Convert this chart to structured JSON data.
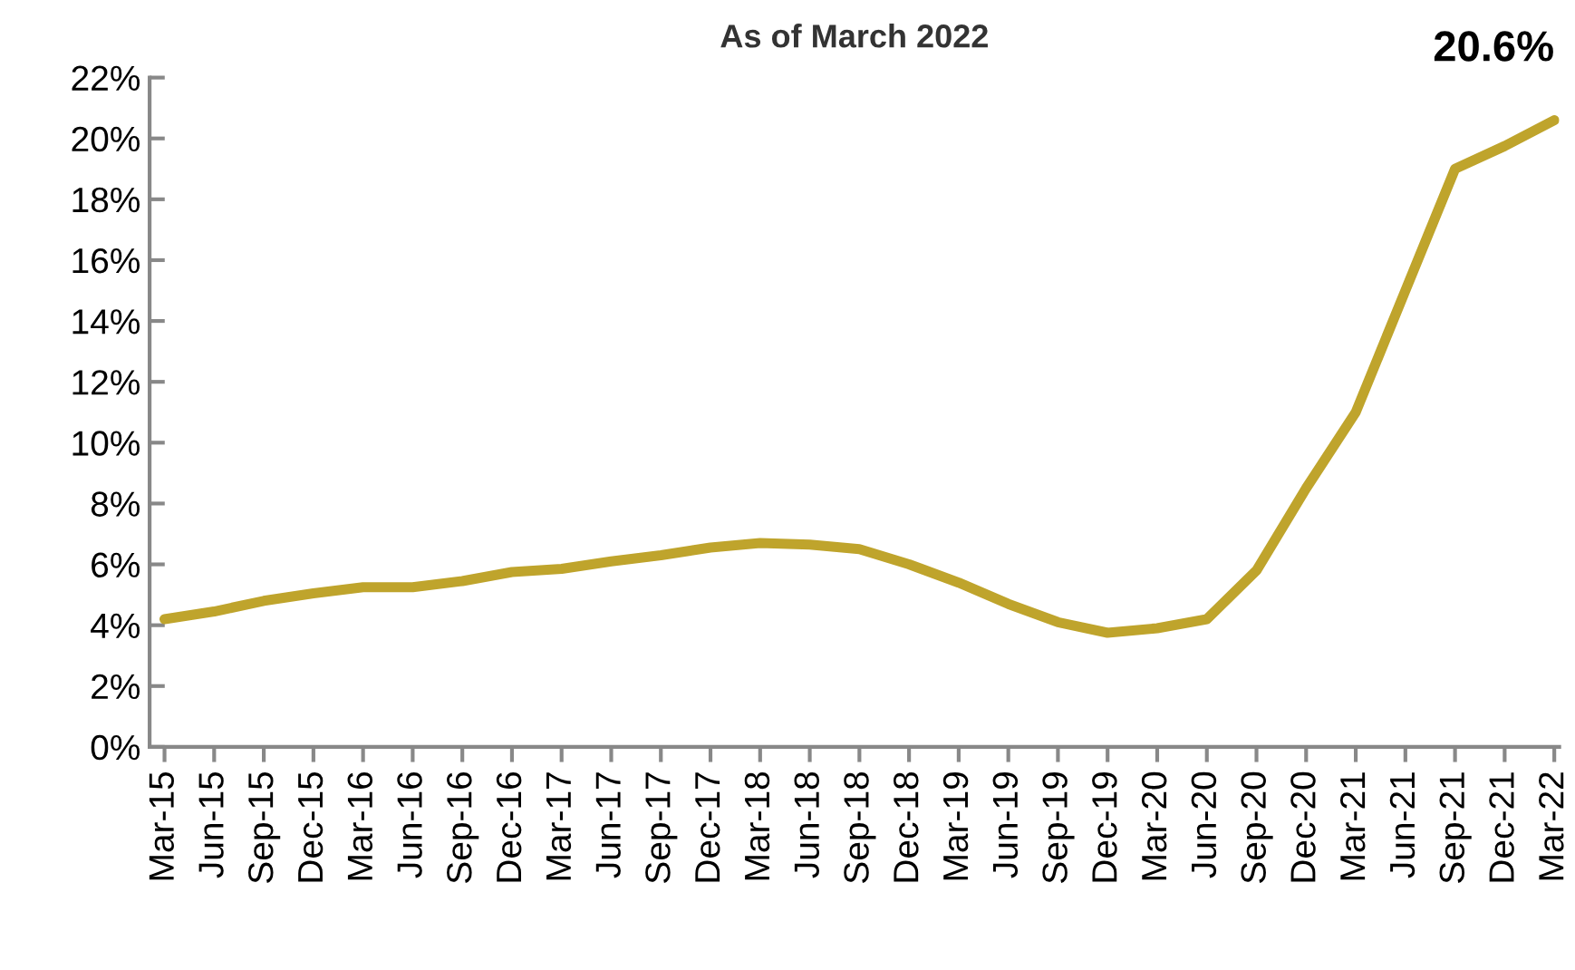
{
  "chart_data": {
    "type": "line",
    "title": "As of March 2022",
    "categories": [
      "Mar-15",
      "Jun-15",
      "Sep-15",
      "Dec-15",
      "Mar-16",
      "Jun-16",
      "Sep-16",
      "Dec-16",
      "Mar-17",
      "Jun-17",
      "Sep-17",
      "Dec-17",
      "Mar-18",
      "Jun-18",
      "Sep-18",
      "Dec-18",
      "Mar-19",
      "Jun-19",
      "Sep-19",
      "Dec-19",
      "Mar-20",
      "Jun-20",
      "Sep-20",
      "Dec-20",
      "Mar-21",
      "Jun-21",
      "Sep-21",
      "Dec-21",
      "Mar-22"
    ],
    "series": [
      {
        "color": "#bfa42c",
        "values": [
          4.2,
          4.45,
          4.8,
          5.05,
          5.25,
          5.25,
          5.45,
          5.75,
          5.85,
          6.1,
          6.3,
          6.55,
          6.7,
          6.65,
          6.5,
          6.0,
          5.4,
          4.7,
          4.1,
          3.75,
          3.9,
          4.2,
          5.8,
          8.5,
          11.0,
          15.0,
          19.0,
          19.75,
          20.6
        ],
        "value_labels": [
          null,
          null,
          null,
          null,
          null,
          null,
          null,
          null,
          null,
          null,
          null,
          null,
          null,
          null,
          null,
          null,
          null,
          null,
          null,
          null,
          null,
          null,
          null,
          null,
          null,
          null,
          null,
          null,
          "20.6%"
        ]
      }
    ],
    "ylim": [
      0,
      22
    ],
    "yticks": [
      {
        "value": 0,
        "label": "0%"
      },
      {
        "value": 2,
        "label": "2%"
      },
      {
        "value": 4,
        "label": "4%"
      },
      {
        "value": 6,
        "label": "6%"
      },
      {
        "value": 8,
        "label": "8%"
      },
      {
        "value": 10,
        "label": "10%"
      },
      {
        "value": 12,
        "label": "12%"
      },
      {
        "value": 14,
        "label": "14%"
      },
      {
        "value": 16,
        "label": "16%"
      },
      {
        "value": 18,
        "label": "18%"
      },
      {
        "value": 20,
        "label": "20%"
      },
      {
        "value": 22,
        "label": "22%"
      }
    ],
    "grid": false,
    "legend": false,
    "marker": "none",
    "line_style": "solid"
  }
}
